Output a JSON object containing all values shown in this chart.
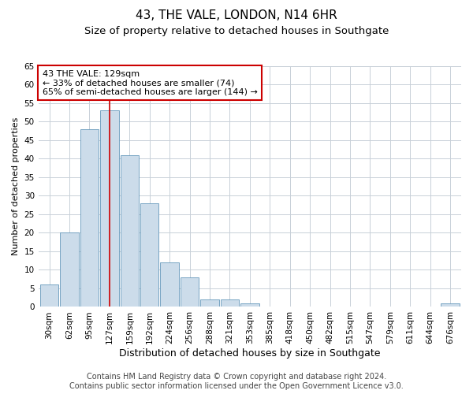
{
  "title": "43, THE VALE, LONDON, N14 6HR",
  "subtitle": "Size of property relative to detached houses in Southgate",
  "xlabel": "Distribution of detached houses by size in Southgate",
  "ylabel": "Number of detached properties",
  "footer_line1": "Contains HM Land Registry data © Crown copyright and database right 2024.",
  "footer_line2": "Contains public sector information licensed under the Open Government Licence v3.0.",
  "annotation_line1": "43 THE VALE: 129sqm",
  "annotation_line2": "← 33% of detached houses are smaller (74)",
  "annotation_line3": "65% of semi-detached houses are larger (144) →",
  "bar_labels": [
    "30sqm",
    "62sqm",
    "95sqm",
    "127sqm",
    "159sqm",
    "192sqm",
    "224sqm",
    "256sqm",
    "288sqm",
    "321sqm",
    "353sqm",
    "385sqm",
    "418sqm",
    "450sqm",
    "482sqm",
    "515sqm",
    "547sqm",
    "579sqm",
    "611sqm",
    "644sqm",
    "676sqm"
  ],
  "bar_values": [
    6,
    20,
    48,
    53,
    41,
    28,
    12,
    8,
    2,
    2,
    1,
    0,
    0,
    0,
    0,
    0,
    0,
    0,
    0,
    0,
    1
  ],
  "bar_color": "#ccdcea",
  "bar_edgecolor": "#6699bb",
  "redline_index": 3,
  "ylim": [
    0,
    65
  ],
  "yticks": [
    0,
    5,
    10,
    15,
    20,
    25,
    30,
    35,
    40,
    45,
    50,
    55,
    60,
    65
  ],
  "grid_color": "#c8d0d8",
  "annotation_box_color": "#ffffff",
  "annotation_box_edgecolor": "#cc0000",
  "redline_color": "#cc0000",
  "title_fontsize": 11,
  "subtitle_fontsize": 9.5,
  "ylabel_fontsize": 8,
  "xlabel_fontsize": 9,
  "tick_fontsize": 7.5,
  "annotation_fontsize": 8,
  "footer_fontsize": 7
}
